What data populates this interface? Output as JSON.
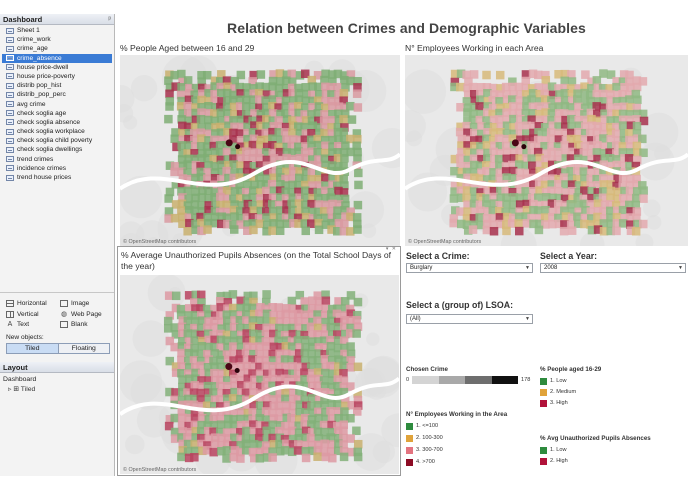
{
  "dashboard_panel": {
    "title": "Dashboard",
    "sheets": [
      {
        "label": "Sheet 1"
      },
      {
        "label": "crime_work"
      },
      {
        "label": "crime_age"
      },
      {
        "label": "crime_absence",
        "selected": true
      },
      {
        "label": "house price-dwell"
      },
      {
        "label": "house price-poverty"
      },
      {
        "label": "distrib pop_hist"
      },
      {
        "label": "distrib_pop_perc"
      },
      {
        "label": "avg crime"
      },
      {
        "label": "check soglia age"
      },
      {
        "label": "check soglia absence"
      },
      {
        "label": "check soglia workplace"
      },
      {
        "label": "check soglia child poverty"
      },
      {
        "label": "check soglia dwellings"
      },
      {
        "label": "trend crimes"
      },
      {
        "label": "incidence crimes"
      },
      {
        "label": "trend house prices"
      }
    ],
    "objects": [
      {
        "label": "Horizontal",
        "icon": "horizontal-container-icon"
      },
      {
        "label": "Image",
        "icon": "image-icon"
      },
      {
        "label": "Vertical",
        "icon": "vertical-container-icon"
      },
      {
        "label": "Web Page",
        "icon": "globe-icon"
      },
      {
        "label": "Text",
        "icon": "text-icon"
      },
      {
        "label": "Blank",
        "icon": "blank-icon"
      }
    ],
    "new_objects_label": "New objects:",
    "tiled_label": "Tiled",
    "floating_label": "Floating"
  },
  "layout_panel": {
    "title": "Layout",
    "root": "Dashboard",
    "child": "Tiled"
  },
  "dashboard": {
    "title": "Relation between Crimes and Demographic Variables",
    "map1_title": "% People Aged between 16 and 29",
    "map2_title": "N° Employees Working in each Area",
    "map3_title": "% Average Unauthorized Pupils Absences (on the Total School Days of the year)",
    "map_credit": "© OpenStreetMap contributors"
  },
  "filters": {
    "crime_label": "Select a Crime:",
    "crime_value": "Burglary",
    "year_label": "Select a Year:",
    "year_value": "2008",
    "lsoa_label": "Select a (group of) LSOA:",
    "lsoa_value": "(All)"
  },
  "legends": {
    "chosen_crime": {
      "title": "Chosen Crime",
      "min": "0",
      "max": "178",
      "colors": [
        "#d4d4d4",
        "#a9a9a9",
        "#6e6e6e",
        "#111111"
      ]
    },
    "people_aged": {
      "title": "% People aged 16-29",
      "items": [
        {
          "label": "1. Low",
          "color": "#2e8b3e"
        },
        {
          "label": "2. Medium",
          "color": "#e0a33a"
        },
        {
          "label": "3. High",
          "color": "#b1123a"
        }
      ]
    },
    "employees": {
      "title": "N° Employees Working in the Area",
      "items": [
        {
          "label": "1. <=100",
          "color": "#2e8b3e"
        },
        {
          "label": "2. 100-300",
          "color": "#e0a33a"
        },
        {
          "label": "3. 300-700",
          "color": "#e3737f"
        },
        {
          "label": "4. >700",
          "color": "#8d0c25"
        }
      ]
    },
    "absences": {
      "title": "% Avg Unauthorized Pupils Absences",
      "items": [
        {
          "label": "1. Low",
          "color": "#2e8b3e"
        },
        {
          "label": "2. High",
          "color": "#b1123a"
        }
      ]
    }
  }
}
